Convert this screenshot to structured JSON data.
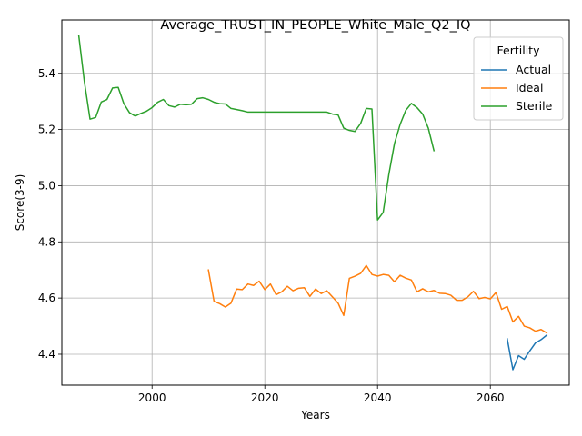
{
  "chart_data": {
    "type": "line",
    "title": "Average_TRUST_IN_PEOPLE_White_Male_Q2_IQ",
    "xlabel": "Years",
    "ylabel": "Score(3-9)",
    "xlim": [
      1984,
      2074
    ],
    "ylim": [
      4.29,
      5.59
    ],
    "xticks": [
      2000,
      2020,
      2040,
      2060
    ],
    "yticks": [
      4.4,
      4.6,
      4.8,
      5.0,
      5.2,
      5.4
    ],
    "xtick_labels": [
      "2000",
      "2020",
      "2040",
      "2060"
    ],
    "ytick_labels": [
      "4.4",
      "4.6",
      "4.8",
      "5.0",
      "5.2",
      "5.4"
    ],
    "grid": true,
    "legend": {
      "title": "Fertility",
      "position": "top-right"
    },
    "series": [
      {
        "name": "Actual",
        "color": "#1f77b4",
        "x": [
          2063,
          2064,
          2065,
          2066,
          2067,
          2068,
          2069,
          2070
        ],
        "y": [
          4.455,
          4.345,
          4.395,
          4.382,
          4.412,
          4.44,
          4.452,
          4.468
        ]
      },
      {
        "name": "Ideal",
        "color": "#ff7f0e",
        "x": [
          2010,
          2011,
          2012,
          2013,
          2014,
          2015,
          2016,
          2017,
          2018,
          2019,
          2020,
          2021,
          2022,
          2023,
          2024,
          2025,
          2026,
          2027,
          2028,
          2029,
          2030,
          2031,
          2032,
          2033,
          2034,
          2035,
          2036,
          2037,
          2038,
          2039,
          2040,
          2041,
          2042,
          2043,
          2044,
          2045,
          2046,
          2047,
          2048,
          2049,
          2050,
          2051,
          2052,
          2053,
          2054,
          2055,
          2056,
          2057,
          2058,
          2059,
          2060,
          2061,
          2062,
          2063,
          2064,
          2065,
          2066,
          2067,
          2068,
          2069,
          2070
        ],
        "y": [
          4.7,
          4.588,
          4.58,
          4.568,
          4.582,
          4.632,
          4.63,
          4.65,
          4.645,
          4.66,
          4.63,
          4.65,
          4.612,
          4.622,
          4.642,
          4.626,
          4.635,
          4.637,
          4.606,
          4.632,
          4.616,
          4.626,
          4.604,
          4.582,
          4.538,
          4.67,
          4.678,
          4.688,
          4.716,
          4.684,
          4.678,
          4.684,
          4.681,
          4.658,
          4.681,
          4.671,
          4.664,
          4.622,
          4.633,
          4.622,
          4.627,
          4.617,
          4.616,
          4.61,
          4.592,
          4.592,
          4.604,
          4.624,
          4.598,
          4.602,
          4.597,
          4.62,
          4.56,
          4.57,
          4.515,
          4.535,
          4.5,
          4.494,
          4.482,
          4.488,
          4.476
        ]
      },
      {
        "name": "Sterile",
        "color": "#2ca02c",
        "x": [
          1987,
          1988,
          1989,
          1990,
          1991,
          1992,
          1993,
          1994,
          1995,
          1996,
          1997,
          1998,
          1999,
          2000,
          2001,
          2002,
          2003,
          2004,
          2005,
          2006,
          2007,
          2008,
          2009,
          2010,
          2011,
          2012,
          2013,
          2014,
          2015,
          2016,
          2017,
          2018,
          2019,
          2020,
          2021,
          2022,
          2023,
          2024,
          2025,
          2026,
          2027,
          2028,
          2029,
          2030,
          2031,
          2032,
          2033,
          2034,
          2035,
          2036,
          2037,
          2038,
          2039,
          2040,
          2041,
          2042,
          2043,
          2044,
          2045,
          2046,
          2047,
          2048,
          2049,
          2050
        ],
        "y": [
          5.535,
          5.37,
          5.237,
          5.243,
          5.298,
          5.307,
          5.348,
          5.35,
          5.292,
          5.26,
          5.248,
          5.257,
          5.265,
          5.278,
          5.297,
          5.307,
          5.285,
          5.28,
          5.29,
          5.288,
          5.29,
          5.31,
          5.313,
          5.307,
          5.297,
          5.292,
          5.291,
          5.275,
          5.271,
          5.267,
          5.262,
          5.262,
          5.262,
          5.262,
          5.262,
          5.262,
          5.262,
          5.262,
          5.262,
          5.262,
          5.262,
          5.262,
          5.262,
          5.262,
          5.262,
          5.255,
          5.252,
          5.205,
          5.197,
          5.193,
          5.222,
          5.275,
          5.273,
          4.878,
          4.905,
          5.04,
          5.15,
          5.218,
          5.268,
          5.293,
          5.278,
          5.255,
          5.205,
          5.125
        ]
      }
    ]
  }
}
